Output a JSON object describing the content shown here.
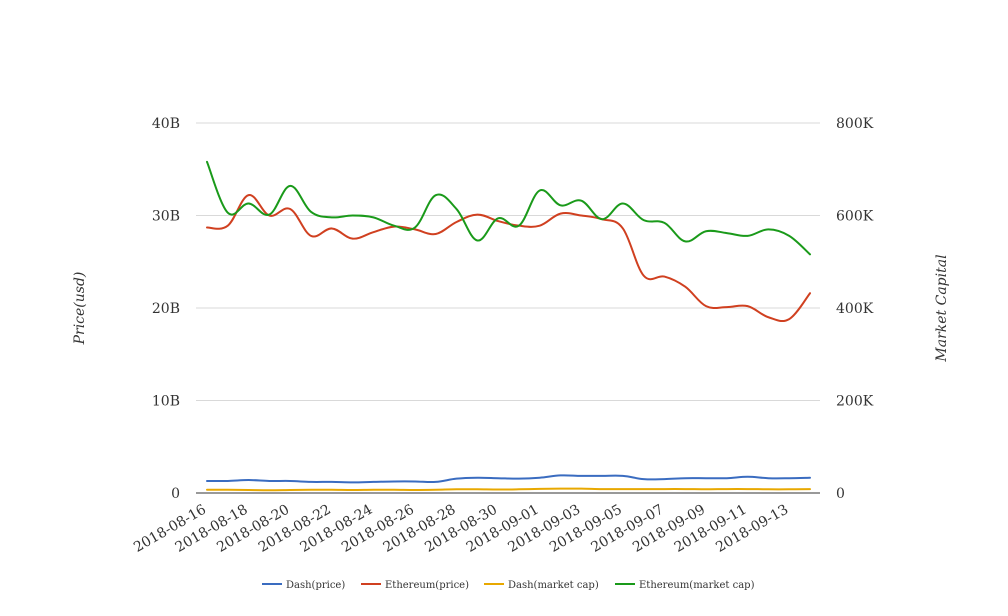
{
  "chart_data": {
    "type": "line",
    "ylabel_left": "Price(usd)",
    "ylabel_right": "Market Capital",
    "ylim_left": [
      0,
      40000000000
    ],
    "ylim_right": [
      0,
      800000
    ],
    "yticks_left": [
      "0",
      "10B",
      "20B",
      "30B",
      "40B"
    ],
    "yticks_right": [
      "0",
      "200K",
      "400K",
      "600K",
      "800K"
    ],
    "grid": true,
    "legend_position": "bottom",
    "x": [
      "2018-08-16",
      "2018-08-17",
      "2018-08-18",
      "2018-08-19",
      "2018-08-20",
      "2018-08-21",
      "2018-08-22",
      "2018-08-23",
      "2018-08-24",
      "2018-08-25",
      "2018-08-26",
      "2018-08-27",
      "2018-08-28",
      "2018-08-29",
      "2018-08-30",
      "2018-08-31",
      "2018-09-01",
      "2018-09-02",
      "2018-09-03",
      "2018-09-04",
      "2018-09-05",
      "2018-09-06",
      "2018-09-07",
      "2018-09-08",
      "2018-09-09",
      "2018-09-10",
      "2018-09-11",
      "2018-09-12",
      "2018-09-13",
      "2018-09-14"
    ],
    "xtick_labels": [
      "2018-08-16",
      "2018-08-18",
      "2018-08-20",
      "2018-08-22",
      "2018-08-24",
      "2018-08-26",
      "2018-08-28",
      "2018-08-30",
      "2018-09-01",
      "2018-09-03",
      "2018-09-05",
      "2018-09-07",
      "2018-09-09",
      "2018-09-11",
      "2018-09-13"
    ],
    "series": [
      {
        "name": "Dash(price)",
        "color": "#3a6cc0",
        "axis": "left",
        "values": [
          1300000000,
          1300000000,
          1400000000,
          1300000000,
          1300000000,
          1200000000,
          1200000000,
          1150000000,
          1200000000,
          1250000000,
          1250000000,
          1200000000,
          1550000000,
          1650000000,
          1600000000,
          1550000000,
          1650000000,
          1900000000,
          1850000000,
          1850000000,
          1850000000,
          1500000000,
          1500000000,
          1600000000,
          1600000000,
          1600000000,
          1750000000,
          1600000000,
          1600000000,
          1650000000
        ]
      },
      {
        "name": "Ethereum(price)",
        "color": "#d04020",
        "axis": "left",
        "values": [
          28700000000,
          28900000000,
          32200000000,
          30000000000,
          30700000000,
          27800000000,
          28600000000,
          27500000000,
          28200000000,
          28800000000,
          28500000000,
          28000000000,
          29300000000,
          30100000000,
          29400000000,
          28900000000,
          28900000000,
          30200000000,
          30000000000,
          29600000000,
          28600000000,
          23500000000,
          23400000000,
          22300000000,
          20200000000,
          20100000000,
          20200000000,
          19000000000,
          18800000000,
          21600000000
        ]
      },
      {
        "name": "Dash(market cap)",
        "color": "#e8a800",
        "axis": "right",
        "values": [
          7000,
          7000,
          6500,
          6000,
          6500,
          7000,
          7000,
          6500,
          7000,
          7000,
          6500,
          7000,
          8000,
          8000,
          7500,
          8000,
          9000,
          9500,
          9500,
          8500,
          8500,
          8500,
          8500,
          8500,
          8000,
          8500,
          8500,
          8000,
          8000,
          8500
        ]
      },
      {
        "name": "Ethereum(market cap)",
        "color": "#1a9a1a",
        "axis": "right",
        "values": [
          716000,
          606000,
          626000,
          602000,
          664000,
          608000,
          596000,
          600000,
          596000,
          578000,
          574000,
          644000,
          614000,
          546000,
          594000,
          578000,
          654000,
          622000,
          632000,
          592000,
          626000,
          590000,
          584000,
          544000,
          566000,
          562000,
          556000,
          570000,
          556000,
          516000
        ]
      }
    ]
  }
}
